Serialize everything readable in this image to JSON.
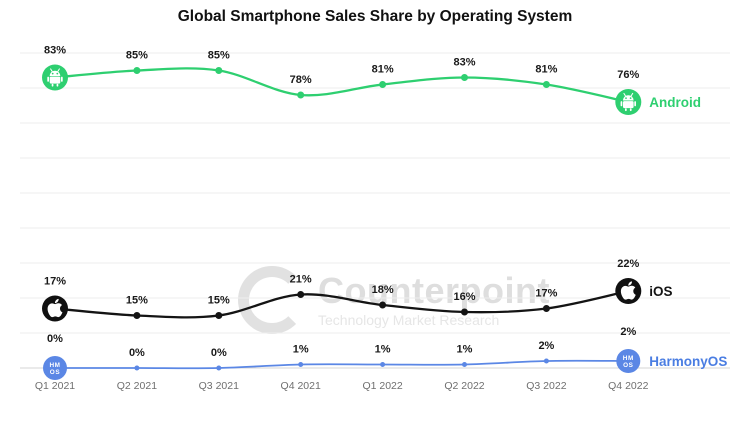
{
  "title": "Global Smartphone Sales Share by Operating System",
  "watermark": {
    "name": "Counterpoint",
    "tagline": "Technology Market Research"
  },
  "chart_data": {
    "type": "line",
    "title": "Global Smartphone Sales Share by Operating System",
    "categories": [
      "Q1 2021",
      "Q2 2021",
      "Q3 2021",
      "Q4 2021",
      "Q1 2022",
      "Q2 2022",
      "Q3 2022",
      "Q4 2022"
    ],
    "series": [
      {
        "name": "Android",
        "color": "#2ecf70",
        "icon": "android-icon",
        "values": [
          83,
          85,
          85,
          78,
          81,
          83,
          81,
          76
        ]
      },
      {
        "name": "iOS",
        "color": "#141414",
        "icon": "apple-icon",
        "values": [
          17,
          15,
          15,
          21,
          18,
          16,
          17,
          22
        ]
      },
      {
        "name": "HarmonyOS",
        "color": "#5b87e5",
        "icon": "harmonyos-icon",
        "values": [
          0,
          0,
          0,
          1,
          1,
          1,
          2,
          2
        ]
      }
    ],
    "ylim": [
      0,
      100
    ],
    "grid": true,
    "legend_position": "right-of-line-ends",
    "value_label_format": "{v}%",
    "harmonyos_label_color": "#4a7de2"
  }
}
